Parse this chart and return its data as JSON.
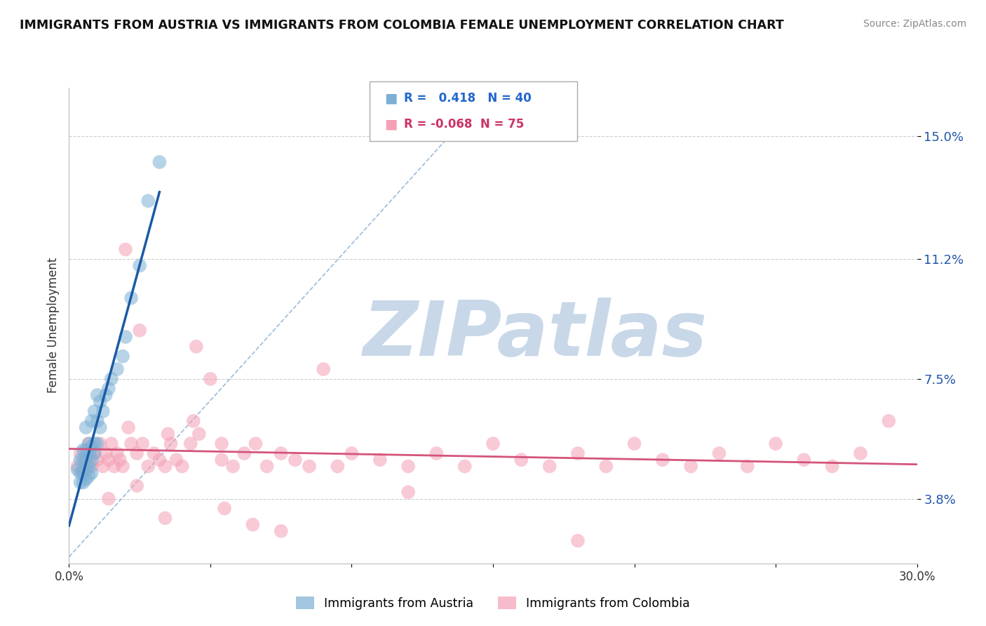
{
  "title": "IMMIGRANTS FROM AUSTRIA VS IMMIGRANTS FROM COLOMBIA FEMALE UNEMPLOYMENT CORRELATION CHART",
  "source": "Source: ZipAtlas.com",
  "ylabel": "Female Unemployment",
  "xlim": [
    0,
    0.3
  ],
  "ylim": [
    0.018,
    0.165
  ],
  "yticks": [
    0.038,
    0.075,
    0.112,
    0.15
  ],
  "ytick_labels": [
    "3.8%",
    "7.5%",
    "11.2%",
    "15.0%"
  ],
  "austria_R": 0.418,
  "austria_N": 40,
  "colombia_R": -0.068,
  "colombia_N": 75,
  "austria_color": "#7BAFD4",
  "colombia_color": "#F4A0B5",
  "trendline_austria_color": "#1A5BA6",
  "trendline_colombia_color": "#D4547A",
  "ref_line_color": "#99BBDD",
  "austria_scatter_x": [
    0.003,
    0.004,
    0.004,
    0.004,
    0.005,
    0.005,
    0.005,
    0.005,
    0.006,
    0.006,
    0.006,
    0.006,
    0.006,
    0.007,
    0.007,
    0.007,
    0.007,
    0.008,
    0.008,
    0.008,
    0.008,
    0.009,
    0.009,
    0.009,
    0.01,
    0.01,
    0.01,
    0.011,
    0.011,
    0.012,
    0.013,
    0.014,
    0.015,
    0.017,
    0.019,
    0.02,
    0.022,
    0.025,
    0.028,
    0.032
  ],
  "austria_scatter_y": [
    0.047,
    0.043,
    0.046,
    0.05,
    0.043,
    0.046,
    0.05,
    0.053,
    0.044,
    0.047,
    0.05,
    0.053,
    0.06,
    0.045,
    0.048,
    0.052,
    0.055,
    0.046,
    0.05,
    0.054,
    0.062,
    0.052,
    0.055,
    0.065,
    0.055,
    0.062,
    0.07,
    0.06,
    0.068,
    0.065,
    0.07,
    0.072,
    0.075,
    0.078,
    0.082,
    0.088,
    0.1,
    0.11,
    0.13,
    0.142
  ],
  "colombia_scatter_x": [
    0.003,
    0.004,
    0.005,
    0.006,
    0.007,
    0.008,
    0.009,
    0.01,
    0.011,
    0.012,
    0.013,
    0.014,
    0.015,
    0.016,
    0.017,
    0.018,
    0.019,
    0.02,
    0.021,
    0.022,
    0.024,
    0.026,
    0.028,
    0.03,
    0.032,
    0.034,
    0.036,
    0.038,
    0.04,
    0.043,
    0.046,
    0.05,
    0.054,
    0.058,
    0.062,
    0.066,
    0.07,
    0.075,
    0.08,
    0.085,
    0.09,
    0.095,
    0.1,
    0.11,
    0.12,
    0.13,
    0.14,
    0.15,
    0.16,
    0.17,
    0.18,
    0.19,
    0.2,
    0.21,
    0.22,
    0.23,
    0.24,
    0.25,
    0.26,
    0.27,
    0.28,
    0.29,
    0.025,
    0.035,
    0.045,
    0.055,
    0.065,
    0.075,
    0.12,
    0.18,
    0.014,
    0.024,
    0.034,
    0.044,
    0.054
  ],
  "colombia_scatter_y": [
    0.048,
    0.052,
    0.047,
    0.05,
    0.055,
    0.048,
    0.052,
    0.05,
    0.055,
    0.048,
    0.052,
    0.05,
    0.055,
    0.048,
    0.052,
    0.05,
    0.048,
    0.115,
    0.06,
    0.055,
    0.052,
    0.055,
    0.048,
    0.052,
    0.05,
    0.048,
    0.055,
    0.05,
    0.048,
    0.055,
    0.058,
    0.075,
    0.05,
    0.048,
    0.052,
    0.055,
    0.048,
    0.052,
    0.05,
    0.048,
    0.078,
    0.048,
    0.052,
    0.05,
    0.048,
    0.052,
    0.048,
    0.055,
    0.05,
    0.048,
    0.052,
    0.048,
    0.055,
    0.05,
    0.048,
    0.052,
    0.048,
    0.055,
    0.05,
    0.048,
    0.052,
    0.062,
    0.09,
    0.058,
    0.085,
    0.035,
    0.03,
    0.028,
    0.04,
    0.025,
    0.038,
    0.042,
    0.032,
    0.062,
    0.055
  ],
  "watermark": "ZIPatlas",
  "watermark_color": "#C8D8E8",
  "background_color": "#FFFFFF",
  "grid_color": "#CCCCCC"
}
